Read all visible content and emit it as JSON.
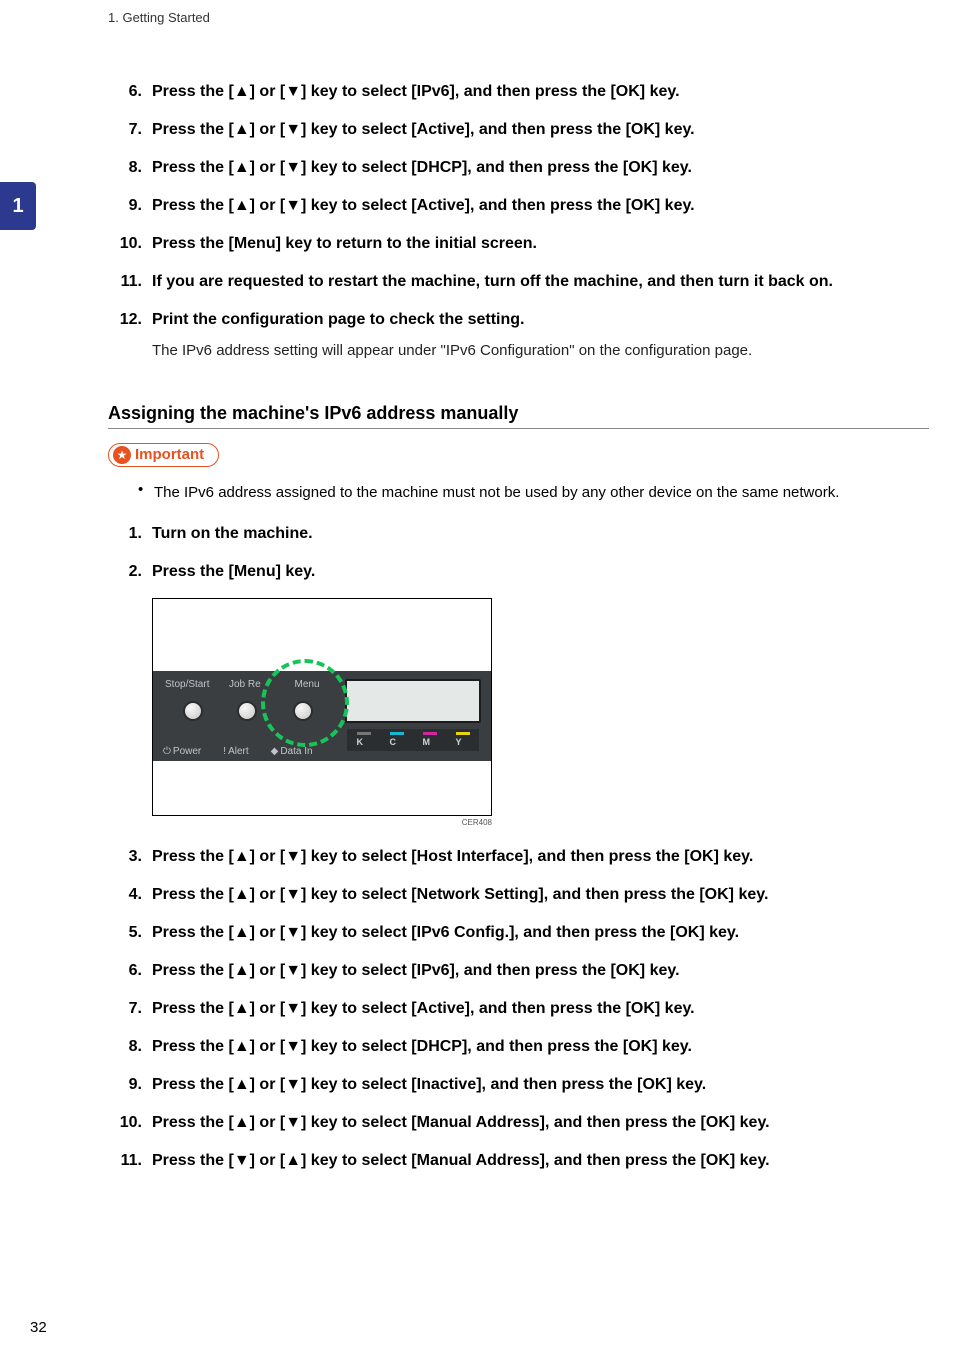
{
  "header": "1. Getting Started",
  "side_tab": "1",
  "page_number": "32",
  "steps_a": [
    {
      "n": "6.",
      "t": "Press the [▲] or [▼] key to select [IPv6], and then press the [OK] key."
    },
    {
      "n": "7.",
      "t": "Press the [▲] or [▼] key to select [Active], and then press the [OK] key."
    },
    {
      "n": "8.",
      "t": "Press the [▲] or [▼] key to select [DHCP], and then press the [OK] key."
    },
    {
      "n": "9.",
      "t": "Press the [▲] or [▼] key to select [Active], and then press the [OK] key."
    },
    {
      "n": "10.",
      "t": "Press the [Menu] key to return to the initial screen."
    },
    {
      "n": "11.",
      "t": "If you are requested to restart the machine, turn off the machine, and then turn it back on."
    },
    {
      "n": "12.",
      "t": "Print the configuration page to check the setting.",
      "note": "The IPv6 address setting will appear under \"IPv6 Configuration\" on the configuration page."
    }
  ],
  "subheading": "Assigning the machine's IPv6 address manually",
  "important_label": "Important",
  "important_bullet": "The IPv6 address assigned to the machine must not be used by any other device on the same network.",
  "steps_b_pre": [
    {
      "n": "1.",
      "t": "Turn on the machine."
    },
    {
      "n": "2.",
      "t": "Press the [Menu] key."
    }
  ],
  "figure": {
    "labels": {
      "stopstart": "Stop/Start",
      "jobreset": "Job Re",
      "menu": "Menu",
      "power": "Power",
      "alert": "Alert",
      "datain": "Data In"
    },
    "toner": {
      "k": "K",
      "c": "C",
      "m": "M",
      "y": "Y"
    },
    "code": "CER408"
  },
  "steps_b_post": [
    {
      "n": "3.",
      "t": "Press the [▲] or [▼] key to select [Host Interface], and then press the [OK] key."
    },
    {
      "n": "4.",
      "t": "Press the [▲] or [▼] key to select [Network Setting], and then press the [OK] key."
    },
    {
      "n": "5.",
      "t": "Press the [▲] or [▼] key to select [IPv6 Config.], and then press the [OK] key."
    },
    {
      "n": "6.",
      "t": "Press the [▲] or [▼] key to select [IPv6], and then press the [OK] key."
    },
    {
      "n": "7.",
      "t": "Press the [▲] or [▼] key to select [Active], and then press the [OK] key."
    },
    {
      "n": "8.",
      "t": "Press the [▲] or [▼] key to select [DHCP], and then press the [OK] key."
    },
    {
      "n": "9.",
      "t": "Press the [▲] or [▼] key to select [Inactive], and then press the [OK] key."
    },
    {
      "n": "10.",
      "t": "Press the [▲] or [▼] key to select [Manual Address], and then press the [OK] key."
    },
    {
      "n": "11.",
      "t": "Press the [▼] or [▲] key to select [Manual Address], and then press the [OK] key."
    }
  ]
}
